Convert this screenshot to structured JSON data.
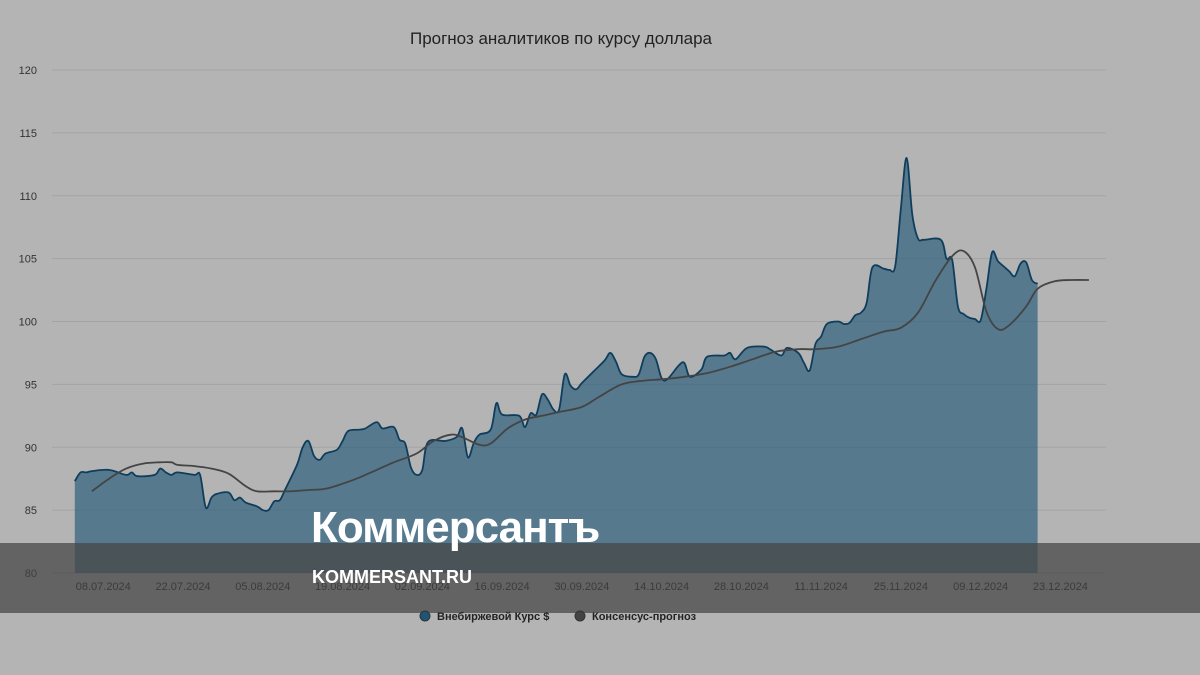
{
  "chart_data": {
    "type": "area",
    "title": "Прогноз аналитиков по курсу доллара",
    "ylim": [
      80,
      120
    ],
    "yticks": [
      80,
      85,
      90,
      95,
      100,
      105,
      110,
      115,
      120
    ],
    "xlim": [
      "2024-06-29",
      "2024-12-31"
    ],
    "xticks": [
      {
        "date": "2024-07-08",
        "label": "08.07.2024"
      },
      {
        "date": "2024-07-22",
        "label": "22.07.2024"
      },
      {
        "date": "2024-08-05",
        "label": "05.08.2024"
      },
      {
        "date": "2024-08-19",
        "label": "19.08.2024"
      },
      {
        "date": "2024-09-02",
        "label": "02.09.2024"
      },
      {
        "date": "2024-09-16",
        "label": "16.09.2024"
      },
      {
        "date": "2024-09-30",
        "label": "30.09.2024"
      },
      {
        "date": "2024-10-14",
        "label": "14.10.2024"
      },
      {
        "date": "2024-10-28",
        "label": "28.10.2024"
      },
      {
        "date": "2024-11-11",
        "label": "11.11.2024"
      },
      {
        "date": "2024-11-25",
        "label": "25.11.2024"
      },
      {
        "date": "2024-12-09",
        "label": "09.12.2024"
      },
      {
        "date": "2024-12-23",
        "label": "23.12.2024"
      }
    ],
    "grid": true,
    "legend_position": "bottom-center",
    "series": [
      {
        "name": "Внебиржевой Курс $",
        "type": "area",
        "color": "#1d5577",
        "points": [
          [
            "2024-07-03",
            87.3
          ],
          [
            "2024-07-04",
            88.0
          ],
          [
            "2024-07-05",
            88.0
          ],
          [
            "2024-07-06",
            88.1
          ],
          [
            "2024-07-09",
            88.2
          ],
          [
            "2024-07-12",
            87.8
          ],
          [
            "2024-07-13",
            88.0
          ],
          [
            "2024-07-14",
            87.7
          ],
          [
            "2024-07-17",
            87.8
          ],
          [
            "2024-07-18",
            88.3
          ],
          [
            "2024-07-19",
            88.0
          ],
          [
            "2024-07-20",
            87.8
          ],
          [
            "2024-07-21",
            88.0
          ],
          [
            "2024-07-24",
            87.8
          ],
          [
            "2024-07-25",
            87.8
          ],
          [
            "2024-07-26",
            85.2
          ],
          [
            "2024-07-27",
            86.0
          ],
          [
            "2024-07-28",
            86.3
          ],
          [
            "2024-07-30",
            86.4
          ],
          [
            "2024-07-31",
            85.8
          ],
          [
            "2024-08-01",
            86.0
          ],
          [
            "2024-08-02",
            85.6
          ],
          [
            "2024-08-04",
            85.3
          ],
          [
            "2024-08-05",
            85.0
          ],
          [
            "2024-08-06",
            85.0
          ],
          [
            "2024-08-07",
            85.7
          ],
          [
            "2024-08-08",
            85.8
          ],
          [
            "2024-08-09",
            86.7
          ],
          [
            "2024-08-11",
            88.6
          ],
          [
            "2024-08-12",
            90.0
          ],
          [
            "2024-08-13",
            90.5
          ],
          [
            "2024-08-14",
            89.3
          ],
          [
            "2024-08-15",
            89.0
          ],
          [
            "2024-08-16",
            89.5
          ],
          [
            "2024-08-18",
            89.8
          ],
          [
            "2024-08-19",
            90.5
          ],
          [
            "2024-08-20",
            91.3
          ],
          [
            "2024-08-22",
            91.4
          ],
          [
            "2024-08-23",
            91.5
          ],
          [
            "2024-08-25",
            92.0
          ],
          [
            "2024-08-26",
            91.5
          ],
          [
            "2024-08-28",
            91.6
          ],
          [
            "2024-08-29",
            90.6
          ],
          [
            "2024-08-30",
            90.3
          ],
          [
            "2024-08-31",
            88.4
          ],
          [
            "2024-09-01",
            87.8
          ],
          [
            "2024-09-02",
            88.2
          ],
          [
            "2024-09-03",
            90.4
          ],
          [
            "2024-09-06",
            90.5
          ],
          [
            "2024-09-08",
            90.8
          ],
          [
            "2024-09-09",
            91.5
          ],
          [
            "2024-09-10",
            89.2
          ],
          [
            "2024-09-11",
            90.3
          ],
          [
            "2024-09-12",
            91.0
          ],
          [
            "2024-09-14",
            91.4
          ],
          [
            "2024-09-15",
            93.5
          ],
          [
            "2024-09-16",
            92.6
          ],
          [
            "2024-09-19",
            92.5
          ],
          [
            "2024-09-20",
            91.6
          ],
          [
            "2024-09-21",
            92.7
          ],
          [
            "2024-09-22",
            92.6
          ],
          [
            "2024-09-23",
            94.2
          ],
          [
            "2024-09-24",
            93.8
          ],
          [
            "2024-09-25",
            93.0
          ],
          [
            "2024-09-26",
            93.0
          ],
          [
            "2024-09-27",
            95.8
          ],
          [
            "2024-09-28",
            94.9
          ],
          [
            "2024-09-29",
            94.6
          ],
          [
            "2024-09-30",
            95.1
          ],
          [
            "2024-10-02",
            96.0
          ],
          [
            "2024-10-04",
            96.9
          ],
          [
            "2024-10-05",
            97.5
          ],
          [
            "2024-10-06",
            96.8
          ],
          [
            "2024-10-07",
            95.8
          ],
          [
            "2024-10-09",
            95.6
          ],
          [
            "2024-10-10",
            95.8
          ],
          [
            "2024-10-11",
            97.2
          ],
          [
            "2024-10-12",
            97.5
          ],
          [
            "2024-10-13",
            97.0
          ],
          [
            "2024-10-14",
            95.5
          ],
          [
            "2024-10-15",
            95.4
          ],
          [
            "2024-10-17",
            96.5
          ],
          [
            "2024-10-18",
            96.7
          ],
          [
            "2024-10-19",
            95.6
          ],
          [
            "2024-10-21",
            96.2
          ],
          [
            "2024-10-22",
            97.2
          ],
          [
            "2024-10-25",
            97.3
          ],
          [
            "2024-10-26",
            97.5
          ],
          [
            "2024-10-27",
            97.0
          ],
          [
            "2024-10-29",
            97.9
          ],
          [
            "2024-11-01",
            98.0
          ],
          [
            "2024-11-02",
            97.8
          ],
          [
            "2024-11-04",
            97.3
          ],
          [
            "2024-11-05",
            97.9
          ],
          [
            "2024-11-07",
            97.5
          ],
          [
            "2024-11-08",
            96.7
          ],
          [
            "2024-11-09",
            96.1
          ],
          [
            "2024-11-10",
            98.2
          ],
          [
            "2024-11-11",
            98.8
          ],
          [
            "2024-11-12",
            99.8
          ],
          [
            "2024-11-14",
            100.0
          ],
          [
            "2024-11-15",
            99.8
          ],
          [
            "2024-11-16",
            99.9
          ],
          [
            "2024-11-17",
            100.5
          ],
          [
            "2024-11-18",
            100.7
          ],
          [
            "2024-11-19",
            101.5
          ],
          [
            "2024-11-20",
            104.3
          ],
          [
            "2024-11-22",
            104.2
          ],
          [
            "2024-11-23",
            104.1
          ],
          [
            "2024-11-24",
            104.4
          ],
          [
            "2024-11-25",
            109.0
          ],
          [
            "2024-11-26",
            113.0
          ],
          [
            "2024-11-27",
            108.5
          ],
          [
            "2024-11-28",
            106.6
          ],
          [
            "2024-11-29",
            106.5
          ],
          [
            "2024-12-02",
            106.5
          ],
          [
            "2024-12-03",
            105.0
          ],
          [
            "2024-12-04",
            104.9
          ],
          [
            "2024-12-05",
            101.2
          ],
          [
            "2024-12-06",
            100.6
          ],
          [
            "2024-12-07",
            100.3
          ],
          [
            "2024-12-08",
            100.2
          ],
          [
            "2024-12-09",
            100.1
          ],
          [
            "2024-12-10",
            102.6
          ],
          [
            "2024-12-11",
            105.5
          ],
          [
            "2024-12-12",
            104.8
          ],
          [
            "2024-12-13",
            104.4
          ],
          [
            "2024-12-14",
            104.0
          ],
          [
            "2024-12-15",
            103.6
          ],
          [
            "2024-12-16",
            104.6
          ],
          [
            "2024-12-17",
            104.7
          ],
          [
            "2024-12-18",
            103.3
          ],
          [
            "2024-12-19",
            103.0
          ]
        ]
      },
      {
        "name": "Консенсус-прогноз",
        "type": "line",
        "color": "#444444",
        "points": [
          [
            "2024-07-06",
            86.5
          ],
          [
            "2024-07-09",
            87.5
          ],
          [
            "2024-07-12",
            88.3
          ],
          [
            "2024-07-15",
            88.7
          ],
          [
            "2024-07-18",
            88.8
          ],
          [
            "2024-07-20",
            88.8
          ],
          [
            "2024-07-21",
            88.6
          ],
          [
            "2024-07-24",
            88.5
          ],
          [
            "2024-07-27",
            88.3
          ],
          [
            "2024-07-30",
            87.9
          ],
          [
            "2024-08-02",
            86.9
          ],
          [
            "2024-08-04",
            86.5
          ],
          [
            "2024-08-07",
            86.5
          ],
          [
            "2024-08-10",
            86.5
          ],
          [
            "2024-08-13",
            86.6
          ],
          [
            "2024-08-16",
            86.7
          ],
          [
            "2024-08-19",
            87.1
          ],
          [
            "2024-08-22",
            87.6
          ],
          [
            "2024-08-25",
            88.2
          ],
          [
            "2024-08-28",
            88.8
          ],
          [
            "2024-09-01",
            89.5
          ],
          [
            "2024-09-04",
            90.5
          ],
          [
            "2024-09-07",
            91.0
          ],
          [
            "2024-09-09",
            90.8
          ],
          [
            "2024-09-12",
            90.2
          ],
          [
            "2024-09-14",
            90.3
          ],
          [
            "2024-09-17",
            91.5
          ],
          [
            "2024-09-20",
            92.2
          ],
          [
            "2024-09-23",
            92.5
          ],
          [
            "2024-09-26",
            92.8
          ],
          [
            "2024-09-30",
            93.2
          ],
          [
            "2024-10-03",
            94.0
          ],
          [
            "2024-10-07",
            95.0
          ],
          [
            "2024-10-11",
            95.3
          ],
          [
            "2024-10-14",
            95.4
          ],
          [
            "2024-10-18",
            95.6
          ],
          [
            "2024-10-22",
            95.9
          ],
          [
            "2024-10-26",
            96.4
          ],
          [
            "2024-10-30",
            97.0
          ],
          [
            "2024-11-03",
            97.6
          ],
          [
            "2024-11-07",
            97.8
          ],
          [
            "2024-11-10",
            97.8
          ],
          [
            "2024-11-14",
            98.0
          ],
          [
            "2024-11-18",
            98.6
          ],
          [
            "2024-11-22",
            99.2
          ],
          [
            "2024-11-25",
            99.5
          ],
          [
            "2024-11-28",
            100.7
          ],
          [
            "2024-12-01",
            103.2
          ],
          [
            "2024-12-04",
            105.2
          ],
          [
            "2024-12-06",
            105.6
          ],
          [
            "2024-12-08",
            104.3
          ],
          [
            "2024-12-10",
            100.8
          ],
          [
            "2024-12-12",
            99.4
          ],
          [
            "2024-12-14",
            99.7
          ],
          [
            "2024-12-17",
            101.2
          ],
          [
            "2024-12-19",
            102.6
          ],
          [
            "2024-12-22",
            103.2
          ],
          [
            "2024-12-25",
            103.3
          ],
          [
            "2024-12-28",
            103.3
          ]
        ]
      }
    ]
  },
  "watermark": {
    "logo": "Коммерсантъ",
    "url": "KOMMERSANT.RU"
  }
}
